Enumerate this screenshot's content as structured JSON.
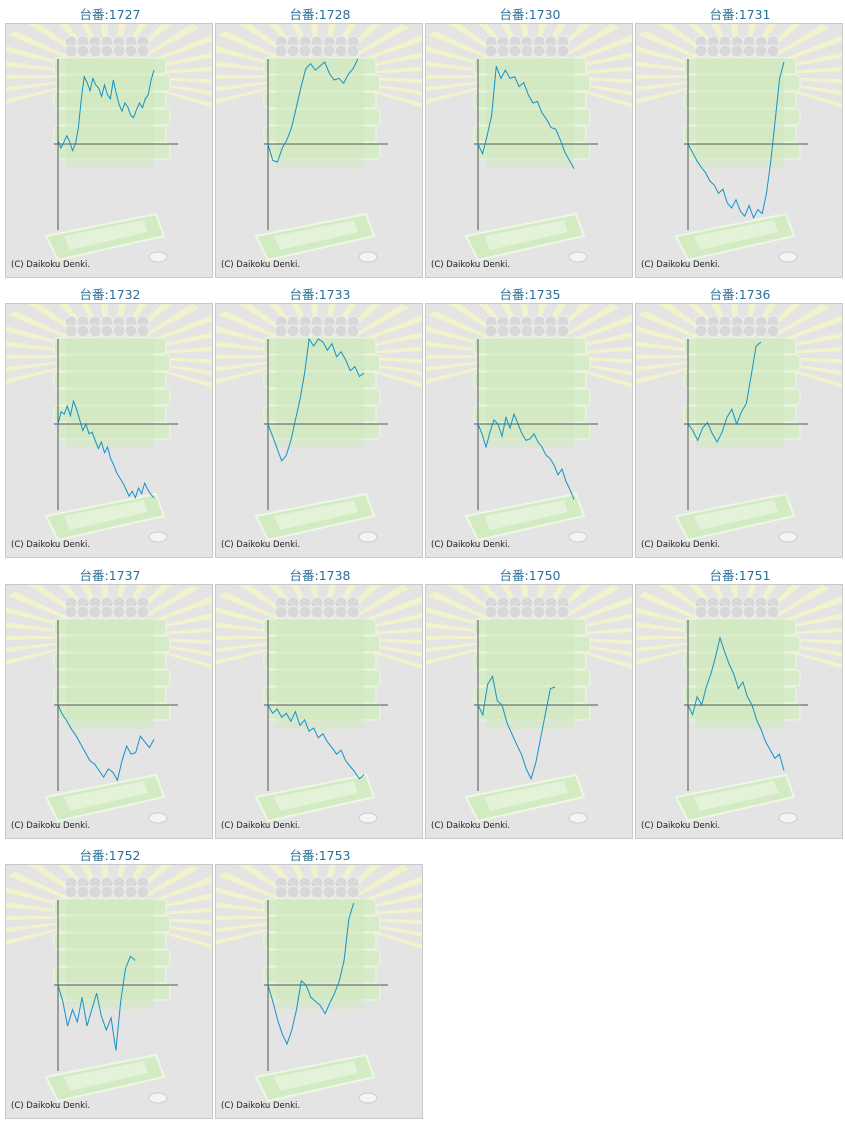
{
  "graphs": [
    {
      "title": "台番:1727",
      "copyright": "(C) Daikoku Denki.",
      "values": [
        0.05,
        -0.05,
        0.02,
        0.1,
        0.03,
        -0.08,
        0.0,
        0.2,
        0.55,
        0.82,
        0.75,
        0.65,
        0.8,
        0.72,
        0.68,
        0.58,
        0.72,
        0.6,
        0.55,
        0.78,
        0.62,
        0.48,
        0.4,
        0.5,
        0.45,
        0.35,
        0.32,
        0.42,
        0.5,
        0.44,
        0.55,
        0.6,
        0.78,
        0.9
      ]
    },
    {
      "title": "台番:1728",
      "copyright": "(C) Daikoku Denki.",
      "values": [
        0.0,
        -0.2,
        -0.22,
        -0.05,
        0.05,
        0.2,
        0.45,
        0.7,
        0.92,
        0.98,
        0.9,
        0.95,
        1.0,
        0.86,
        0.78,
        0.8,
        0.74,
        0.85,
        0.92,
        1.05
      ]
    },
    {
      "title": "台番:1730",
      "copyright": "(C) Daikoku Denki.",
      "values": [
        0.0,
        -0.12,
        0.1,
        0.35,
        0.95,
        0.8,
        0.9,
        0.8,
        0.82,
        0.7,
        0.75,
        0.6,
        0.5,
        0.52,
        0.38,
        0.3,
        0.2,
        0.18,
        0.05,
        -0.1,
        -0.2,
        -0.3
      ]
    },
    {
      "title": "台番:1731",
      "copyright": "(C) Daikoku Denki.",
      "values": [
        0.0,
        -0.1,
        -0.2,
        -0.28,
        -0.35,
        -0.45,
        -0.5,
        -0.6,
        -0.55,
        -0.72,
        -0.78,
        -0.68,
        -0.82,
        -0.88,
        -0.75,
        -0.9,
        -0.8,
        -0.85,
        -0.6,
        -0.2,
        0.3,
        0.8,
        1.0
      ]
    },
    {
      "title": "台番:1732",
      "copyright": "(C) Daikoku Denki.",
      "values": [
        0.0,
        0.15,
        0.12,
        0.22,
        0.1,
        0.28,
        0.18,
        0.05,
        -0.08,
        0.0,
        -0.12,
        -0.1,
        -0.2,
        -0.3,
        -0.22,
        -0.35,
        -0.28,
        -0.42,
        -0.5,
        -0.6,
        -0.66,
        -0.72,
        -0.8,
        -0.88,
        -0.82,
        -0.9,
        -0.78,
        -0.85,
        -0.72,
        -0.8,
        -0.86,
        -0.9
      ]
    },
    {
      "title": "台番:1733",
      "copyright": "(C) Daikoku Denki.",
      "values": [
        0.0,
        -0.15,
        -0.3,
        -0.45,
        -0.38,
        -0.2,
        0.05,
        0.3,
        0.62,
        1.1,
        0.95,
        1.05,
        1.0,
        0.9,
        0.98,
        0.82,
        0.88,
        0.78,
        0.65,
        0.7,
        0.58,
        0.62
      ]
    },
    {
      "title": "台番:1735",
      "copyright": "(C) Daikoku Denki.",
      "values": [
        0.0,
        -0.12,
        -0.28,
        -0.1,
        0.05,
        0.0,
        -0.15,
        0.08,
        -0.05,
        0.12,
        0.0,
        -0.12,
        -0.2,
        -0.18,
        -0.12,
        -0.22,
        -0.28,
        -0.38,
        -0.42,
        -0.5,
        -0.62,
        -0.55,
        -0.7,
        -0.8,
        -0.92
      ]
    },
    {
      "title": "台番:1736",
      "copyright": "(C) Daikoku Denki.",
      "values": [
        0.0,
        -0.08,
        -0.2,
        -0.05,
        0.02,
        -0.12,
        -0.22,
        -0.1,
        0.08,
        0.18,
        0.0,
        0.15,
        0.25,
        0.6,
        0.95,
        1.0
      ]
    },
    {
      "title": "台番:1737",
      "copyright": "(C) Daikoku Denki.",
      "values": [
        0.0,
        -0.12,
        -0.2,
        -0.3,
        -0.38,
        -0.48,
        -0.58,
        -0.68,
        -0.72,
        -0.8,
        -0.88,
        -0.78,
        -0.82,
        -0.92,
        -0.68,
        -0.5,
        -0.6,
        -0.58,
        -0.38,
        -0.45,
        -0.52,
        -0.42
      ]
    },
    {
      "title": "台番:1738",
      "copyright": "(C) Daikoku Denki.",
      "values": [
        0.0,
        -0.1,
        -0.05,
        -0.15,
        -0.1,
        -0.2,
        -0.08,
        -0.25,
        -0.18,
        -0.32,
        -0.28,
        -0.4,
        -0.35,
        -0.45,
        -0.52,
        -0.6,
        -0.55,
        -0.68,
        -0.75,
        -0.82,
        -0.9,
        -0.85
      ]
    },
    {
      "title": "台番:1750",
      "copyright": "(C) Daikoku Denki.",
      "values": [
        0.0,
        -0.12,
        0.25,
        0.35,
        0.05,
        0.0,
        -0.22,
        -0.35,
        -0.48,
        -0.6,
        -0.78,
        -0.9,
        -0.7,
        -0.4,
        -0.1,
        0.2,
        0.22
      ]
    },
    {
      "title": "台番:1751",
      "copyright": "(C) Daikoku Denki.",
      "values": [
        0.0,
        -0.12,
        0.1,
        0.0,
        0.22,
        0.38,
        0.58,
        0.82,
        0.65,
        0.5,
        0.38,
        0.2,
        0.28,
        0.1,
        0.0,
        -0.18,
        -0.3,
        -0.45,
        -0.55,
        -0.65,
        -0.6,
        -0.8
      ]
    },
    {
      "title": "台番:1752",
      "copyright": "(C) Daikoku Denki.",
      "values": [
        0.0,
        -0.2,
        -0.5,
        -0.3,
        -0.45,
        -0.15,
        -0.5,
        -0.3,
        -0.1,
        -0.38,
        -0.55,
        -0.4,
        -0.8,
        -0.2,
        0.2,
        0.35,
        0.3
      ]
    },
    {
      "title": "台番:1753",
      "copyright": "(C) Daikoku Denki.",
      "values": [
        0.0,
        -0.2,
        -0.42,
        -0.6,
        -0.72,
        -0.55,
        -0.3,
        0.05,
        0.0,
        -0.15,
        -0.2,
        -0.25,
        -0.35,
        -0.22,
        -0.1,
        0.05,
        0.3,
        0.8,
        1.0
      ]
    }
  ]
}
